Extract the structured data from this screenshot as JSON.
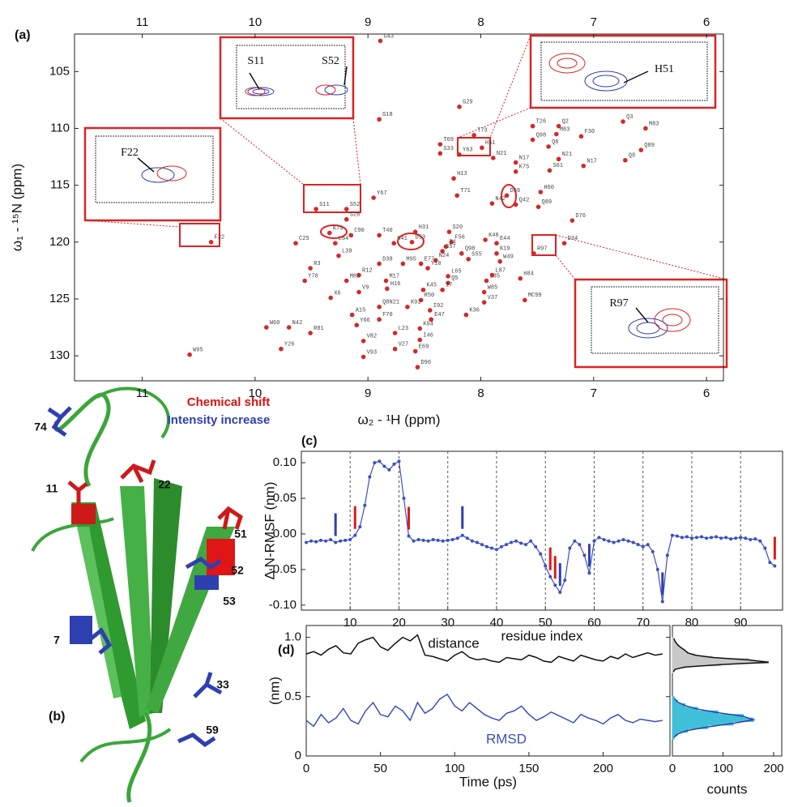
{
  "chart_data": [
    {
      "type": "scatter",
      "panel_label": "(a)",
      "xlabel": "ω₂ - ¹H (ppm)",
      "ylabel": "ω₁ - ¹⁵N (ppm)",
      "color": "#d22a2a",
      "xlim": [
        11.6,
        5.85
      ],
      "ylim": [
        101.7,
        132.2
      ],
      "xticks": [
        11,
        10,
        9,
        8,
        7,
        6
      ],
      "yticks": [
        105,
        110,
        115,
        120,
        125,
        130
      ],
      "labels": [
        "G43",
        "G18",
        "G29",
        "T73",
        "T69",
        "S33",
        "Y63",
        "H51",
        "N21",
        "T26",
        "Q2",
        "M83",
        "F30",
        "Q98",
        "Q8",
        "N21",
        "N17",
        "N17",
        "K75",
        "S61",
        "Q3",
        "M83",
        "Q89",
        "Q8",
        "H13",
        "T71",
        "D59",
        "N42",
        "Q42",
        "H60",
        "Q89",
        "D76",
        "S11",
        "S52",
        "Y67",
        "S28",
        "H31",
        "S20",
        "F56",
        "T4",
        "K48",
        "C90",
        "T40",
        "K74",
        "D53",
        "L64",
        "R41",
        "S57",
        "Q98",
        "E44",
        "K19",
        "W49",
        "S55",
        "I35",
        "R97",
        "D34",
        "F22",
        "C25",
        "L39",
        "N24",
        "E77",
        "Y10",
        "M95",
        "D38",
        "R3",
        "R12",
        "M82",
        "L65",
        "Q5",
        "L87",
        "H84",
        "Y78",
        "M17",
        "H16",
        "V9",
        "K45",
        "I7",
        "W85",
        "X6",
        "R50",
        "K91",
        "I92",
        "V37",
        "K36",
        "E47",
        "F70",
        "MC99",
        "A15",
        "Q8N21",
        "Y66",
        "W60",
        "N42",
        "R81",
        "K94",
        "L23",
        "I46",
        "V82",
        "V27",
        "V93",
        "E69",
        "D96",
        "W95",
        "Y26"
      ],
      "x": [
        8.89,
        8.9,
        8.19,
        8.06,
        8.36,
        8.36,
        8.19,
        7.99,
        7.89,
        7.54,
        7.31,
        7.33,
        7.11,
        7.54,
        7.4,
        7.31,
        7.69,
        7.09,
        7.69,
        7.39,
        6.74,
        6.54,
        6.58,
        6.72,
        8.24,
        8.21,
        7.77,
        7.9,
        7.69,
        7.47,
        7.49,
        7.19,
        9.46,
        9.19,
        8.95,
        9.19,
        8.58,
        8.28,
        8.26,
        8.31,
        7.96,
        9.15,
        8.9,
        9.34,
        8.61,
        9.29,
        8.77,
        8.34,
        8.17,
        7.86,
        7.86,
        7.83,
        8.11,
        7.95,
        7.53,
        7.26,
        10.39,
        9.64,
        9.26,
        8.4,
        8.53,
        8.47,
        8.69,
        8.9,
        9.51,
        9.08,
        9.19,
        8.29,
        8.29,
        7.9,
        7.65,
        9.56,
        8.84,
        8.83,
        9.08,
        8.51,
        8.34,
        7.97,
        9.33,
        8.53,
        8.65,
        8.45,
        7.97,
        8.13,
        8.44,
        8.9,
        7.61,
        9.14,
        8.9,
        9.1,
        9.9,
        9.7,
        9.51,
        8.54,
        8.76,
        8.54,
        9.04,
        8.76,
        9.04,
        8.58,
        8.56,
        10.58,
        9.77
      ],
      "values": [
        102.3,
        109.2,
        108.1,
        110.6,
        111.4,
        112.2,
        112.3,
        111.7,
        112.6,
        109.8,
        109.8,
        110.5,
        110.7,
        111.0,
        111.6,
        112.7,
        113.0,
        113.3,
        113.8,
        113.7,
        109.4,
        110.0,
        111.9,
        112.8,
        114.4,
        115.9,
        115.9,
        116.6,
        116.7,
        115.6,
        116.9,
        118.1,
        117.1,
        117.1,
        116.1,
        118.0,
        119.1,
        119.1,
        120.0,
        120.4,
        119.8,
        119.4,
        119.4,
        119.2,
        120.0,
        120.1,
        120.1,
        120.8,
        121.0,
        120.1,
        121.0,
        121.7,
        121.5,
        123.4,
        121.0,
        120.1,
        120.0,
        120.1,
        121.2,
        121.6,
        121.9,
        122.3,
        121.9,
        121.9,
        122.3,
        122.9,
        123.4,
        123.0,
        123.6,
        122.9,
        123.2,
        123.4,
        123.4,
        124.1,
        124.4,
        124.2,
        124.2,
        124.4,
        124.9,
        125.1,
        125.7,
        126.0,
        125.3,
        126.4,
        126.8,
        126.8,
        125.1,
        126.4,
        125.7,
        127.3,
        127.5,
        127.5,
        128.0,
        127.6,
        128.0,
        128.6,
        128.7,
        129.4,
        130.1,
        129.6,
        131.0,
        129.9,
        129.4
      ]
    },
    {
      "type": "line",
      "panel_label": "(c)",
      "xlabel": "residue index",
      "ylabel": "Δ N-RMSF (nm)",
      "grid": true,
      "xlim": [
        0,
        98.6
      ],
      "ylim": [
        -0.107,
        0.116
      ],
      "xticks": [
        10,
        20,
        30,
        40,
        50,
        60,
        70,
        80,
        90
      ],
      "yticks": [
        {
          "value": -0.1,
          "label": "-0.10"
        },
        {
          "value": -0.05,
          "label": "-0.05"
        },
        {
          "value": 0,
          "label": "0.00"
        },
        {
          "value": 0.05,
          "label": "0.05"
        },
        {
          "value": 0.1,
          "label": "0.10"
        }
      ],
      "x": [
        1,
        2,
        3,
        4,
        5,
        6,
        7,
        8,
        9,
        10,
        11,
        12,
        13,
        14,
        15,
        16,
        17,
        18,
        19,
        20,
        21,
        22,
        23,
        24,
        25,
        26,
        27,
        28,
        29,
        30,
        31,
        32,
        33,
        34,
        35,
        36,
        37,
        38,
        39,
        40,
        41,
        42,
        43,
        44,
        45,
        46,
        47,
        48,
        49,
        50,
        51,
        52,
        53,
        54,
        55,
        56,
        57,
        58,
        59,
        60,
        61,
        62,
        63,
        64,
        65,
        66,
        67,
        68,
        69,
        70,
        71,
        72,
        73,
        74,
        75,
        76,
        77,
        78,
        79,
        80,
        81,
        82,
        83,
        84,
        85,
        86,
        87,
        88,
        89,
        90,
        91,
        92,
        93,
        94,
        95,
        96,
        97
      ],
      "series": [
        {
          "color": "#3b4fc0",
          "values": [
            -0.012,
            -0.01,
            -0.011,
            -0.009,
            -0.01,
            -0.008,
            -0.012,
            -0.01,
            -0.009,
            -0.008,
            -0.002,
            0.01,
            0.04,
            0.08,
            0.1,
            0.102,
            0.095,
            0.09,
            0.098,
            0.102,
            0.05,
            -0.003,
            -0.01,
            -0.008,
            -0.009,
            -0.01,
            -0.008,
            -0.009,
            -0.01,
            -0.009,
            -0.008,
            -0.006,
            -0.002,
            -0.006,
            -0.01,
            -0.012,
            -0.015,
            -0.018,
            -0.02,
            -0.022,
            -0.018,
            -0.015,
            -0.012,
            -0.01,
            -0.013,
            -0.015,
            -0.01,
            -0.018,
            -0.028,
            -0.045,
            -0.06,
            -0.072,
            -0.082,
            -0.065,
            -0.02,
            -0.01,
            -0.015,
            -0.03,
            -0.055,
            -0.01,
            -0.005,
            -0.008,
            -0.01,
            -0.012,
            -0.01,
            -0.008,
            -0.01,
            -0.012,
            -0.015,
            -0.018,
            -0.015,
            -0.025,
            -0.05,
            -0.095,
            -0.03,
            -0.002,
            -0.003,
            -0.005,
            -0.004,
            -0.006,
            -0.005,
            -0.004,
            -0.006,
            -0.005,
            -0.004,
            -0.006,
            -0.005,
            -0.007,
            -0.006,
            -0.005,
            -0.006,
            -0.008,
            -0.007,
            -0.01,
            -0.02,
            -0.04,
            -0.045
          ]
        }
      ],
      "markers": [
        {
          "color": "#d81b1b",
          "residues": [
            11,
            22,
            51,
            52,
            97
          ]
        },
        {
          "color": "#2e3fb0",
          "residues": [
            7,
            33,
            53,
            59,
            74
          ]
        }
      ]
    },
    {
      "type": "line",
      "panel_label": "(d)",
      "xlabel": "Time (ps)",
      "ylabel": "(nm)",
      "xlim": [
        0,
        245
      ],
      "ylim": [
        0,
        1.1
      ],
      "xticks": [
        0,
        50,
        100,
        150,
        200
      ],
      "yticks": [
        0,
        0.5,
        {
          "value": 1,
          "label": "1.0"
        }
      ],
      "x": [
        0,
        5,
        10,
        15,
        20,
        25,
        30,
        35,
        40,
        45,
        50,
        55,
        60,
        65,
        70,
        75,
        80,
        85,
        90,
        95,
        100,
        105,
        110,
        115,
        120,
        125,
        130,
        135,
        140,
        145,
        150,
        155,
        160,
        165,
        170,
        175,
        180,
        185,
        190,
        195,
        200,
        205,
        210,
        215,
        220,
        225,
        230,
        235,
        240
      ],
      "series": [
        {
          "name": "distance",
          "color": "#111111",
          "values": [
            0.86,
            0.88,
            0.85,
            0.9,
            0.93,
            0.87,
            0.86,
            0.95,
            0.98,
            1.0,
            0.92,
            0.89,
            0.95,
            1.0,
            0.97,
            1.02,
            0.85,
            0.84,
            0.82,
            0.8,
            0.85,
            0.88,
            0.83,
            0.81,
            0.82,
            0.8,
            0.79,
            0.83,
            0.82,
            0.81,
            0.85,
            0.83,
            0.8,
            0.79,
            0.84,
            0.82,
            0.8,
            0.85,
            0.83,
            0.81,
            0.8,
            0.84,
            0.82,
            0.86,
            0.83,
            0.85,
            0.87,
            0.85,
            0.86
          ]
        },
        {
          "name": "RMSD",
          "color": "#3b4fc0",
          "values": [
            0.3,
            0.25,
            0.35,
            0.28,
            0.32,
            0.4,
            0.3,
            0.27,
            0.38,
            0.45,
            0.35,
            0.33,
            0.42,
            0.38,
            0.3,
            0.45,
            0.36,
            0.4,
            0.48,
            0.52,
            0.42,
            0.38,
            0.45,
            0.4,
            0.35,
            0.32,
            0.3,
            0.36,
            0.38,
            0.42,
            0.35,
            0.3,
            0.33,
            0.37,
            0.34,
            0.31,
            0.28,
            0.35,
            0.32,
            0.3,
            0.27,
            0.32,
            0.35,
            0.3,
            0.28,
            0.31,
            0.3,
            0.29,
            0.3
          ]
        }
      ],
      "hist_xlabel": "counts",
      "hist_xlim": [
        0,
        216
      ],
      "hist_xticks": [
        0,
        100,
        200
      ],
      "histograms": [
        {
          "color": "#c8c8c8",
          "bins": [
            0.7,
            0.72,
            0.74,
            0.76,
            0.78,
            0.8,
            0.82,
            0.84,
            0.86,
            0.88,
            0.9,
            0.92,
            0.94,
            0.96,
            0.98,
            1.0
          ],
          "counts": [
            2,
            5,
            25,
            95,
            190,
            150,
            80,
            45,
            30,
            25,
            18,
            12,
            8,
            5,
            3
          ]
        },
        {
          "color": "#40c0d8",
          "bins": [
            0.14,
            0.17,
            0.2,
            0.23,
            0.26,
            0.29,
            0.32,
            0.35,
            0.38,
            0.41,
            0.44,
            0.47,
            0.5
          ],
          "counts": [
            3,
            10,
            30,
            70,
            120,
            160,
            140,
            90,
            50,
            25,
            10,
            4
          ]
        }
      ]
    }
  ],
  "insets": [
    [
      "S11",
      "S52"
    ],
    [
      "H51"
    ],
    [
      "F22"
    ],
    [
      "R97"
    ]
  ],
  "structure": {
    "panel_label": "(b)",
    "legend": [
      "Chemical shift",
      "Intensity increase"
    ],
    "residue_labels": [
      "74",
      "11",
      "22",
      "51",
      "52",
      "53",
      "7",
      "33",
      "59"
    ]
  }
}
